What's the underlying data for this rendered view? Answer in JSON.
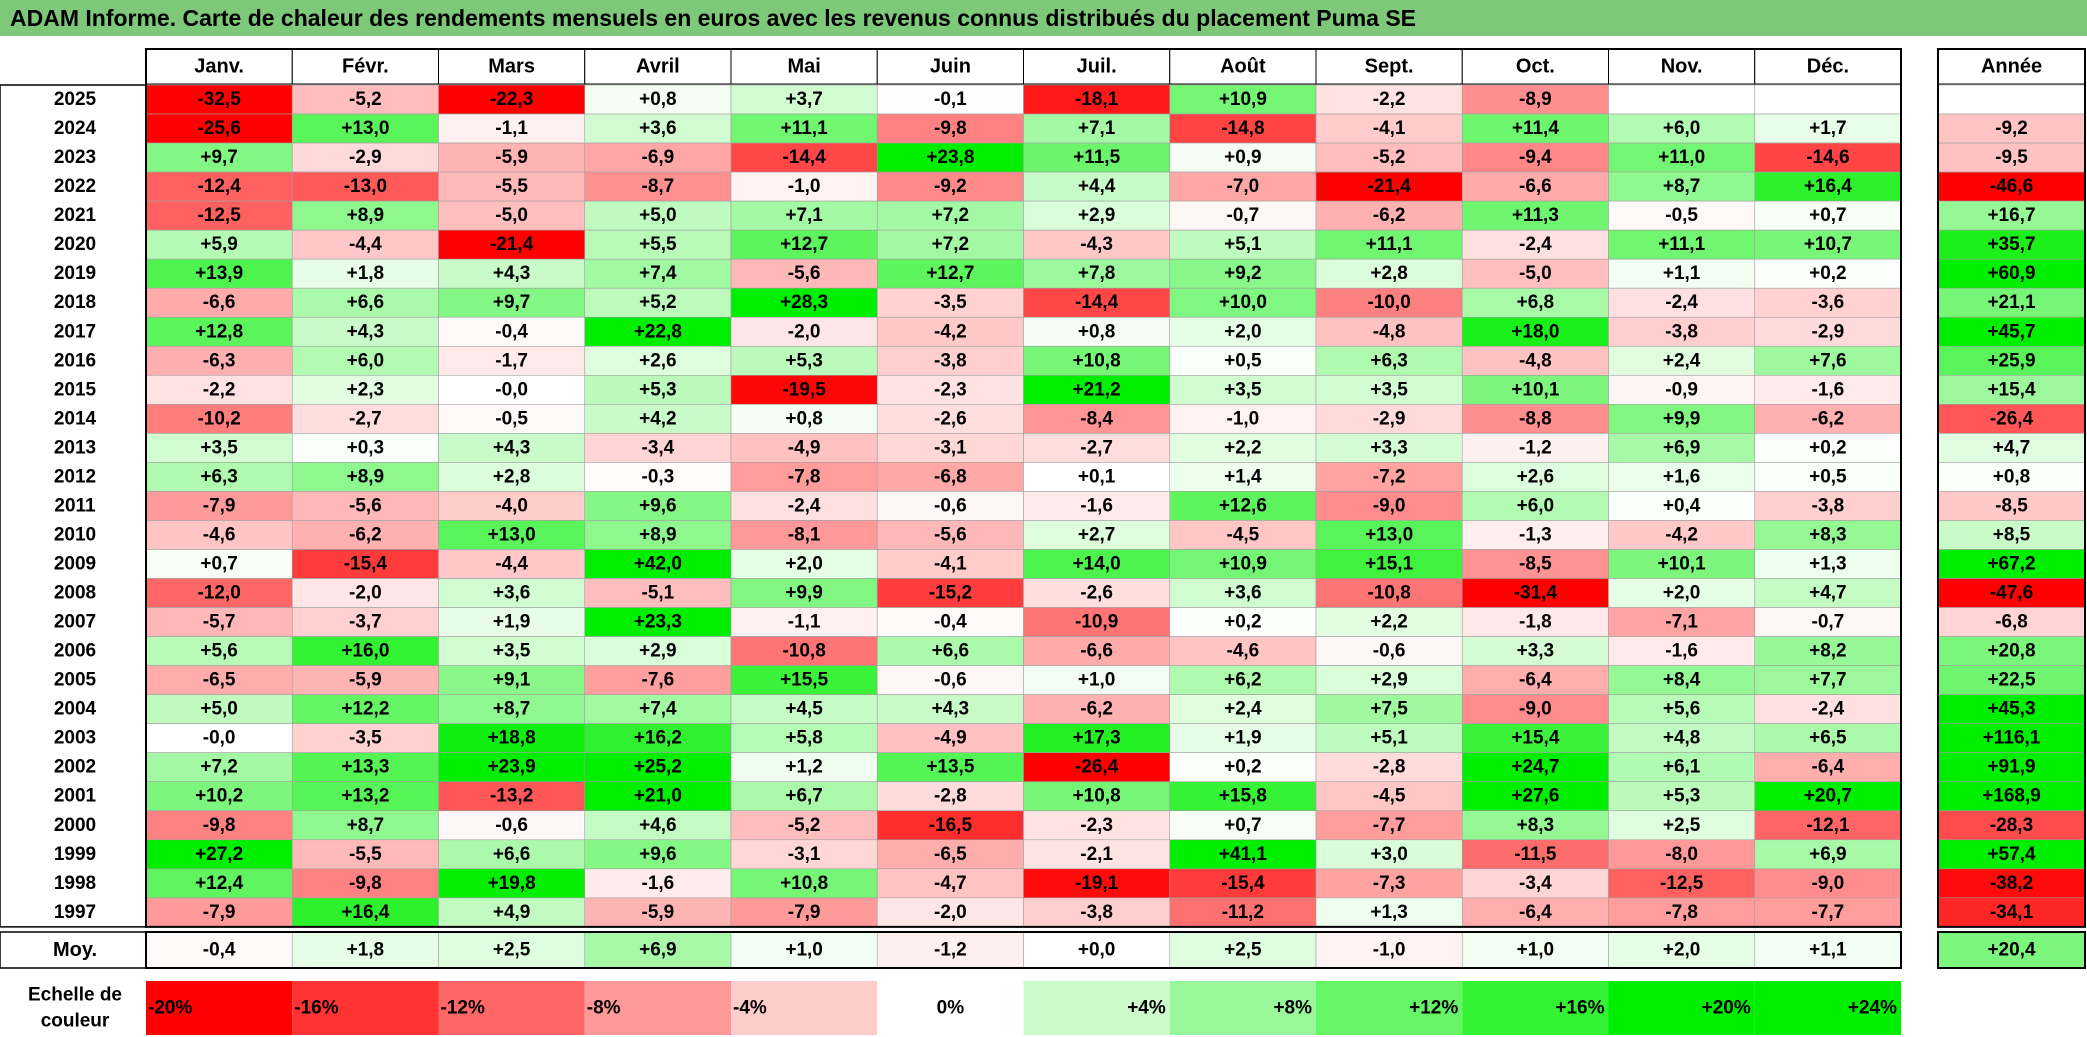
{
  "title": "ADAM Informe. Carte de chaleur des rendements mensuels en euros avec les revenus connus distribués du placement Puma SE",
  "chart_data": {
    "type": "heatmap",
    "months": [
      "Janv.",
      "Févr.",
      "Mars",
      "Avril",
      "Mai",
      "Juin",
      "Juil.",
      "Août",
      "Sept.",
      "Oct.",
      "Nov.",
      "Déc."
    ],
    "annual_header": "Année",
    "rows": [
      {
        "year": "2025",
        "values": [
          "-32,5",
          "-5,2",
          "-22,3",
          "+0,8",
          "+3,7",
          "-0,1",
          "-18,1",
          "+10,9",
          "-2,2",
          "-8,9",
          "",
          ""
        ],
        "annual": ""
      },
      {
        "year": "2024",
        "values": [
          "-25,6",
          "+13,0",
          "-1,1",
          "+3,6",
          "+11,1",
          "-9,8",
          "+7,1",
          "-14,8",
          "-4,1",
          "+11,4",
          "+6,0",
          "+1,7"
        ],
        "annual": "-9,2"
      },
      {
        "year": "2023",
        "values": [
          "+9,7",
          "-2,9",
          "-5,9",
          "-6,9",
          "-14,4",
          "+23,8",
          "+11,5",
          "+0,9",
          "-5,2",
          "-9,4",
          "+11,0",
          "-14,6"
        ],
        "annual": "-9,5"
      },
      {
        "year": "2022",
        "values": [
          "-12,4",
          "-13,0",
          "-5,5",
          "-8,7",
          "-1,0",
          "-9,2",
          "+4,4",
          "-7,0",
          "-21,4",
          "-6,6",
          "+8,7",
          "+16,4"
        ],
        "annual": "-46,6"
      },
      {
        "year": "2021",
        "values": [
          "-12,5",
          "+8,9",
          "-5,0",
          "+5,0",
          "+7,1",
          "+7,2",
          "+2,9",
          "-0,7",
          "-6,2",
          "+11,3",
          "-0,5",
          "+0,7"
        ],
        "annual": "+16,7"
      },
      {
        "year": "2020",
        "values": [
          "+5,9",
          "-4,4",
          "-21,4",
          "+5,5",
          "+12,7",
          "+7,2",
          "-4,3",
          "+5,1",
          "+11,1",
          "-2,4",
          "+11,1",
          "+10,7"
        ],
        "annual": "+35,7"
      },
      {
        "year": "2019",
        "values": [
          "+13,9",
          "+1,8",
          "+4,3",
          "+7,4",
          "-5,6",
          "+12,7",
          "+7,8",
          "+9,2",
          "+2,8",
          "-5,0",
          "+1,1",
          "+0,2"
        ],
        "annual": "+60,9"
      },
      {
        "year": "2018",
        "values": [
          "-6,6",
          "+6,6",
          "+9,7",
          "+5,2",
          "+28,3",
          "-3,5",
          "-14,4",
          "+10,0",
          "-10,0",
          "+6,8",
          "-2,4",
          "-3,6"
        ],
        "annual": "+21,1"
      },
      {
        "year": "2017",
        "values": [
          "+12,8",
          "+4,3",
          "-0,4",
          "+22,8",
          "-2,0",
          "-4,2",
          "+0,8",
          "+2,0",
          "-4,8",
          "+18,0",
          "-3,8",
          "-2,9"
        ],
        "annual": "+45,7"
      },
      {
        "year": "2016",
        "values": [
          "-6,3",
          "+6,0",
          "-1,7",
          "+2,6",
          "+5,3",
          "-3,8",
          "+10,8",
          "+0,5",
          "+6,3",
          "-4,8",
          "+2,4",
          "+7,6"
        ],
        "annual": "+25,9"
      },
      {
        "year": "2015",
        "values": [
          "-2,2",
          "+2,3",
          "-0,0",
          "+5,3",
          "-19,5",
          "-2,3",
          "+21,2",
          "+3,5",
          "+3,5",
          "+10,1",
          "-0,9",
          "-1,6"
        ],
        "annual": "+15,4"
      },
      {
        "year": "2014",
        "values": [
          "-10,2",
          "-2,7",
          "-0,5",
          "+4,2",
          "+0,8",
          "-2,6",
          "-8,4",
          "-1,0",
          "-2,9",
          "-8,8",
          "+9,9",
          "-6,2"
        ],
        "annual": "-26,4"
      },
      {
        "year": "2013",
        "values": [
          "+3,5",
          "+0,3",
          "+4,3",
          "-3,4",
          "-4,9",
          "-3,1",
          "-2,7",
          "+2,2",
          "+3,3",
          "-1,2",
          "+6,9",
          "+0,2"
        ],
        "annual": "+4,7"
      },
      {
        "year": "2012",
        "values": [
          "+6,3",
          "+8,9",
          "+2,8",
          "-0,3",
          "-7,8",
          "-6,8",
          "+0,1",
          "+1,4",
          "-7,2",
          "+2,6",
          "+1,6",
          "+0,5"
        ],
        "annual": "+0,8"
      },
      {
        "year": "2011",
        "values": [
          "-7,9",
          "-5,6",
          "-4,0",
          "+9,6",
          "-2,4",
          "-0,6",
          "-1,6",
          "+12,6",
          "-9,0",
          "+6,0",
          "+0,4",
          "-3,8"
        ],
        "annual": "-8,5"
      },
      {
        "year": "2010",
        "values": [
          "-4,6",
          "-6,2",
          "+13,0",
          "+8,9",
          "-8,1",
          "-5,6",
          "+2,7",
          "-4,5",
          "+13,0",
          "-1,3",
          "-4,2",
          "+8,3"
        ],
        "annual": "+8,5"
      },
      {
        "year": "2009",
        "values": [
          "+0,7",
          "-15,4",
          "-4,4",
          "+42,0",
          "+2,0",
          "-4,1",
          "+14,0",
          "+10,9",
          "+15,1",
          "-8,5",
          "+10,1",
          "+1,3"
        ],
        "annual": "+67,2"
      },
      {
        "year": "2008",
        "values": [
          "-12,0",
          "-2,0",
          "+3,6",
          "-5,1",
          "+9,9",
          "-15,2",
          "-2,6",
          "+3,6",
          "-10,8",
          "-31,4",
          "+2,0",
          "+4,7"
        ],
        "annual": "-47,6"
      },
      {
        "year": "2007",
        "values": [
          "-5,7",
          "-3,7",
          "+1,9",
          "+23,3",
          "-1,1",
          "-0,4",
          "-10,9",
          "+0,2",
          "+2,2",
          "-1,8",
          "-7,1",
          "-0,7"
        ],
        "annual": "-6,8"
      },
      {
        "year": "2006",
        "values": [
          "+5,6",
          "+16,0",
          "+3,5",
          "+2,9",
          "-10,8",
          "+6,6",
          "-6,6",
          "-4,6",
          "-0,6",
          "+3,3",
          "-1,6",
          "+8,2"
        ],
        "annual": "+20,8"
      },
      {
        "year": "2005",
        "values": [
          "-6,5",
          "-5,9",
          "+9,1",
          "-7,6",
          "+15,5",
          "-0,6",
          "+1,0",
          "+6,2",
          "+2,9",
          "-6,4",
          "+8,4",
          "+7,7"
        ],
        "annual": "+22,5"
      },
      {
        "year": "2004",
        "values": [
          "+5,0",
          "+12,2",
          "+8,7",
          "+7,4",
          "+4,5",
          "+4,3",
          "-6,2",
          "+2,4",
          "+7,5",
          "-9,0",
          "+5,6",
          "-2,4"
        ],
        "annual": "+45,3"
      },
      {
        "year": "2003",
        "values": [
          "-0,0",
          "-3,5",
          "+18,8",
          "+16,2",
          "+5,8",
          "-4,9",
          "+17,3",
          "+1,9",
          "+5,1",
          "+15,4",
          "+4,8",
          "+6,5"
        ],
        "annual": "+116,1"
      },
      {
        "year": "2002",
        "values": [
          "+7,2",
          "+13,3",
          "+23,9",
          "+25,2",
          "+1,2",
          "+13,5",
          "-26,4",
          "+0,2",
          "-2,8",
          "+24,7",
          "+6,1",
          "-6,4"
        ],
        "annual": "+91,9"
      },
      {
        "year": "2001",
        "values": [
          "+10,2",
          "+13,2",
          "-13,2",
          "+21,0",
          "+6,7",
          "-2,8",
          "+10,8",
          "+15,8",
          "-4,5",
          "+27,6",
          "+5,3",
          "+20,7"
        ],
        "annual": "+168,9"
      },
      {
        "year": "2000",
        "values": [
          "-9,8",
          "+8,7",
          "-0,6",
          "+4,6",
          "-5,2",
          "-16,5",
          "-2,3",
          "+0,7",
          "-7,7",
          "+8,3",
          "+2,5",
          "-12,1"
        ],
        "annual": "-28,3"
      },
      {
        "year": "1999",
        "values": [
          "+27,2",
          "-5,5",
          "+6,6",
          "+9,6",
          "-3,1",
          "-6,5",
          "-2,1",
          "+41,1",
          "+3,0",
          "-11,5",
          "-8,0",
          "+6,9"
        ],
        "annual": "+57,4"
      },
      {
        "year": "1998",
        "values": [
          "+12,4",
          "-9,8",
          "+19,8",
          "-1,6",
          "+10,8",
          "-4,7",
          "-19,1",
          "-15,4",
          "-7,3",
          "-3,4",
          "-12,5",
          "-9,0"
        ],
        "annual": "-38,2"
      },
      {
        "year": "1997",
        "values": [
          "-7,9",
          "+16,4",
          "+4,9",
          "-5,9",
          "-7,9",
          "-2,0",
          "-3,8",
          "-11,2",
          "+1,3",
          "-6,4",
          "-7,8",
          "-7,7"
        ],
        "annual": "-34,1"
      }
    ],
    "average": {
      "label": "Moy.",
      "values": [
        "-0,4",
        "+1,8",
        "+2,5",
        "+6,9",
        "+1,0",
        "-1,2",
        "+0,0",
        "+2,5",
        "-1,0",
        "+1,0",
        "+2,0",
        "+1,1"
      ],
      "annual": "+20,4"
    },
    "scale": {
      "label_line1": "Echelle de",
      "label_line2": "couleur",
      "steps": [
        "-20%",
        "-16%",
        "-12%",
        "-8%",
        "-4%",
        "0%",
        "+4%",
        "+8%",
        "+12%",
        "+16%",
        "+20%",
        "+24%"
      ]
    },
    "colors": {
      "negative_max": "#ff0000",
      "neutral": "#ffffff",
      "positive_max": "#00ee00",
      "title_bg": "#7ec87a"
    }
  }
}
